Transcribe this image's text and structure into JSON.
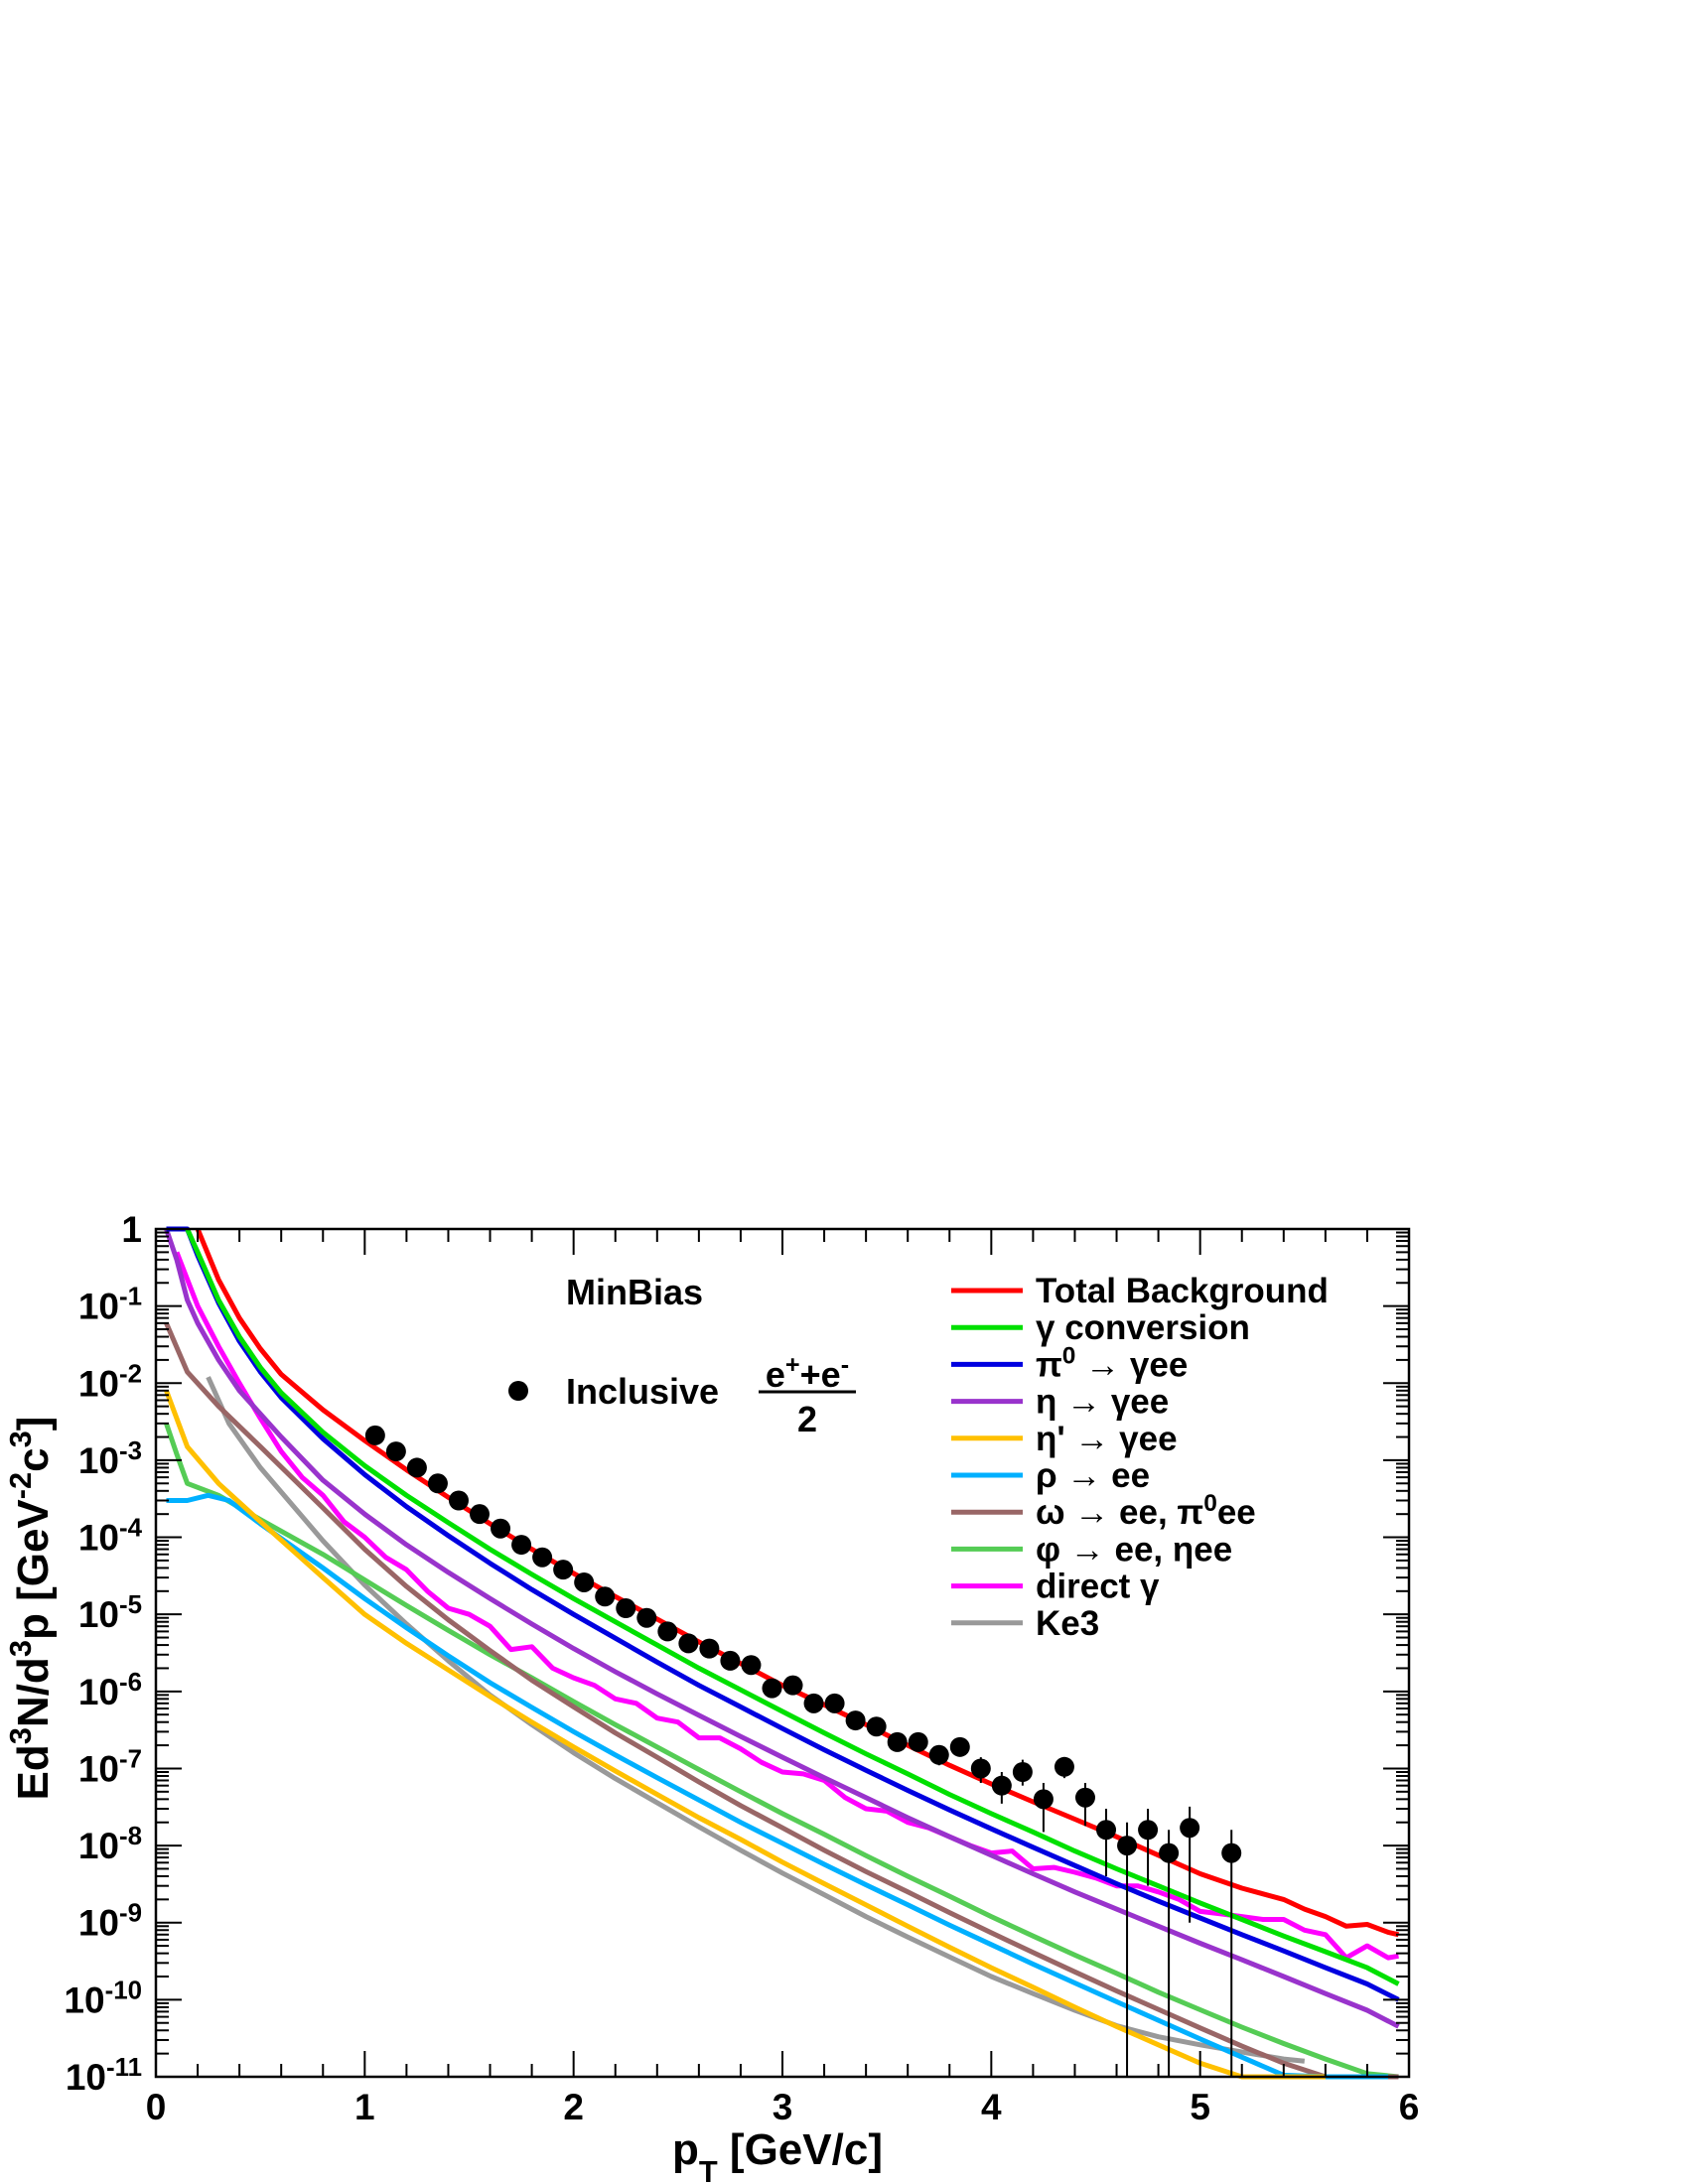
{
  "chart_data": {
    "type": "line",
    "title": "",
    "xlabel": "p_T [GeV/c]",
    "ylabel": "Ed^3N/d^3p [GeV^-2c^3]",
    "xlim": [
      0,
      6
    ],
    "ylim": [
      1e-11,
      1
    ],
    "yscale": "log",
    "x_ticks": [
      "0",
      "1",
      "2",
      "3",
      "4",
      "5",
      "6"
    ],
    "y_ticks": [
      {
        "base": "10",
        "exp": "-11",
        "value": 1e-11
      },
      {
        "base": "10",
        "exp": "-10",
        "value": 1e-10
      },
      {
        "base": "10",
        "exp": "-9",
        "value": 1e-09
      },
      {
        "base": "10",
        "exp": "-8",
        "value": 1e-08
      },
      {
        "base": "10",
        "exp": "-7",
        "value": 1e-07
      },
      {
        "base": "10",
        "exp": "-6",
        "value": 1e-06
      },
      {
        "base": "10",
        "exp": "-5",
        "value": 1e-05
      },
      {
        "base": "10",
        "exp": "-4",
        "value": 0.0001
      },
      {
        "base": "10",
        "exp": "-3",
        "value": 0.001
      },
      {
        "base": "10",
        "exp": "-2",
        "value": 0.01
      },
      {
        "base": "10",
        "exp": "-1",
        "value": 0.1
      },
      {
        "base": "1",
        "exp": "",
        "value": 1
      }
    ],
    "grid": false,
    "legend_position": "top-right",
    "annotation": {
      "text": "MinBias"
    },
    "data_series": {
      "name_prefix": "Inclusive",
      "numerator": "e+e-",
      "denominator": "2",
      "color": "#000000",
      "points": [
        {
          "x": 1.05,
          "y": 0.0021,
          "yerr_low": null,
          "yerr_high": null
        },
        {
          "x": 1.15,
          "y": 0.0013,
          "yerr_low": null,
          "yerr_high": null
        },
        {
          "x": 1.25,
          "y": 0.0008,
          "yerr_low": null,
          "yerr_high": null
        },
        {
          "x": 1.35,
          "y": 0.0005,
          "yerr_low": null,
          "yerr_high": null
        },
        {
          "x": 1.45,
          "y": 0.0003,
          "yerr_low": null,
          "yerr_high": null
        },
        {
          "x": 1.55,
          "y": 0.0002,
          "yerr_low": null,
          "yerr_high": null
        },
        {
          "x": 1.65,
          "y": 0.00013,
          "yerr_low": null,
          "yerr_high": null
        },
        {
          "x": 1.75,
          "y": 8e-05,
          "yerr_low": null,
          "yerr_high": null
        },
        {
          "x": 1.85,
          "y": 5.5e-05,
          "yerr_low": null,
          "yerr_high": null
        },
        {
          "x": 1.95,
          "y": 3.8e-05,
          "yerr_low": null,
          "yerr_high": null
        },
        {
          "x": 2.05,
          "y": 2.6e-05,
          "yerr_low": null,
          "yerr_high": null
        },
        {
          "x": 2.15,
          "y": 1.7e-05,
          "yerr_low": null,
          "yerr_high": null
        },
        {
          "x": 2.25,
          "y": 1.2e-05,
          "yerr_low": null,
          "yerr_high": null
        },
        {
          "x": 2.35,
          "y": 9e-06,
          "yerr_low": null,
          "yerr_high": null
        },
        {
          "x": 2.45,
          "y": 6e-06,
          "yerr_low": null,
          "yerr_high": null
        },
        {
          "x": 2.55,
          "y": 4.2e-06,
          "yerr_low": null,
          "yerr_high": null
        },
        {
          "x": 2.65,
          "y": 3.6e-06,
          "yerr_low": null,
          "yerr_high": null
        },
        {
          "x": 2.75,
          "y": 2.5e-06,
          "yerr_low": null,
          "yerr_high": null
        },
        {
          "x": 2.85,
          "y": 2.2e-06,
          "yerr_low": null,
          "yerr_high": null
        },
        {
          "x": 2.95,
          "y": 1.1e-06,
          "yerr_low": null,
          "yerr_high": null
        },
        {
          "x": 3.05,
          "y": 1.2e-06,
          "yerr_low": null,
          "yerr_high": null
        },
        {
          "x": 3.15,
          "y": 7e-07,
          "yerr_low": null,
          "yerr_high": null
        },
        {
          "x": 3.25,
          "y": 7e-07,
          "yerr_low": null,
          "yerr_high": null
        },
        {
          "x": 3.35,
          "y": 4.2e-07,
          "yerr_low": null,
          "yerr_high": null
        },
        {
          "x": 3.45,
          "y": 3.5e-07,
          "yerr_low": null,
          "yerr_high": null
        },
        {
          "x": 3.55,
          "y": 2.2e-07,
          "yerr_low": null,
          "yerr_high": null
        },
        {
          "x": 3.65,
          "y": 2.2e-07,
          "yerr_low": null,
          "yerr_high": null
        },
        {
          "x": 3.75,
          "y": 1.5e-07,
          "yerr_low": 1.1e-07,
          "yerr_high": 2e-07
        },
        {
          "x": 3.85,
          "y": 1.9e-07,
          "yerr_low": null,
          "yerr_high": null
        },
        {
          "x": 3.95,
          "y": 1e-07,
          "yerr_low": 6.5e-08,
          "yerr_high": 1.4e-07
        },
        {
          "x": 4.05,
          "y": 6e-08,
          "yerr_low": 3.5e-08,
          "yerr_high": 9e-08
        },
        {
          "x": 4.15,
          "y": 9e-08,
          "yerr_low": 6e-08,
          "yerr_high": 1.3e-07
        },
        {
          "x": 4.25,
          "y": 4e-08,
          "yerr_low": 1.5e-08,
          "yerr_high": 6.5e-08
        },
        {
          "x": 4.35,
          "y": 1.05e-07,
          "yerr_low": 7.5e-08,
          "yerr_high": 1.4e-07
        },
        {
          "x": 4.45,
          "y": 4.2e-08,
          "yerr_low": 1.8e-08,
          "yerr_high": 6.5e-08
        },
        {
          "x": 4.55,
          "y": 1.6e-08,
          "yerr_low": 4e-09,
          "yerr_high": 3e-08
        },
        {
          "x": 4.65,
          "y": 1e-08,
          "yerr_low": 1e-11,
          "yerr_high": 2e-08
        },
        {
          "x": 4.75,
          "y": 1.6e-08,
          "yerr_low": 3e-09,
          "yerr_high": 3e-08
        },
        {
          "x": 4.85,
          "y": 8e-09,
          "yerr_low": 1e-11,
          "yerr_high": 1.6e-08
        },
        {
          "x": 4.95,
          "y": 1.7e-08,
          "yerr_low": 1e-09,
          "yerr_high": 3.2e-08
        },
        {
          "x": 5.15,
          "y": 8e-09,
          "yerr_low": 1e-11,
          "yerr_high": 1.6e-08
        }
      ]
    },
    "series": [
      {
        "name": "Total Background",
        "color": "#ff0000",
        "x": [
          0.2,
          0.3,
          0.4,
          0.5,
          0.6,
          0.8,
          1.0,
          1.2,
          1.4,
          1.6,
          1.8,
          2.0,
          2.2,
          2.4,
          2.6,
          2.8,
          3.0,
          3.2,
          3.4,
          3.6,
          3.8,
          4.0,
          4.2,
          4.4,
          4.6,
          4.8,
          5.0,
          5.2,
          5.4,
          5.5,
          5.6,
          5.7,
          5.8,
          5.9,
          5.95
        ],
        "y": [
          1.0,
          0.22,
          0.07,
          0.028,
          0.013,
          0.0045,
          0.0018,
          0.00075,
          0.00033,
          0.00015,
          7e-05,
          3.4e-05,
          1.7e-05,
          8.7e-06,
          4.4e-06,
          2.3e-06,
          1.2e-06,
          6.7e-07,
          3.7e-07,
          2e-07,
          1.1e-07,
          6.3e-08,
          3.7e-08,
          2.2e-08,
          1.3e-08,
          7.5e-09,
          4.3e-09,
          2.8e-09,
          2e-09,
          1.5e-09,
          1.2e-09,
          9e-10,
          9.5e-10,
          7.5e-10,
          7e-10
        ]
      },
      {
        "name": "γ conversion",
        "color": "#00e000",
        "x": [
          0.15,
          0.2,
          0.3,
          0.4,
          0.5,
          0.6,
          0.8,
          1.0,
          1.2,
          1.4,
          1.6,
          1.8,
          2.0,
          2.2,
          2.4,
          2.6,
          2.8,
          3.0,
          3.2,
          3.4,
          3.6,
          3.8,
          4.0,
          4.2,
          4.4,
          4.6,
          4.8,
          5.0,
          5.2,
          5.4,
          5.6,
          5.8,
          5.95
        ],
        "y": [
          1.0,
          0.5,
          0.12,
          0.04,
          0.016,
          0.0075,
          0.0023,
          0.00085,
          0.00035,
          0.000155,
          7e-05,
          3.3e-05,
          1.6e-05,
          8e-06,
          4e-06,
          2e-06,
          1.05e-06,
          5.5e-07,
          2.9e-07,
          1.55e-07,
          8.5e-08,
          4.6e-08,
          2.6e-08,
          1.5e-08,
          8.5e-09,
          5e-09,
          3e-09,
          1.8e-09,
          1.1e-09,
          6.7e-10,
          4.2e-10,
          2.6e-10,
          1.6e-10
        ]
      },
      {
        "name": "π⁰ → γee",
        "color": "#0000e0",
        "x": [
          0.05,
          0.15,
          0.2,
          0.3,
          0.4,
          0.5,
          0.6,
          0.8,
          1.0,
          1.2,
          1.4,
          1.6,
          1.8,
          2.0,
          2.2,
          2.4,
          2.6,
          2.8,
          3.0,
          3.2,
          3.4,
          3.6,
          3.8,
          4.0,
          4.2,
          4.4,
          4.6,
          4.8,
          5.0,
          5.2,
          5.4,
          5.6,
          5.8,
          5.95
        ],
        "y": [
          1.0,
          1.0,
          0.45,
          0.11,
          0.035,
          0.014,
          0.0065,
          0.0019,
          0.00065,
          0.00025,
          0.000105,
          4.6e-05,
          2.1e-05,
          1e-05,
          4.9e-06,
          2.4e-06,
          1.2e-06,
          6.3e-07,
          3.3e-07,
          1.75e-07,
          9.5e-08,
          5.2e-08,
          2.9e-08,
          1.65e-08,
          9.5e-09,
          5.5e-09,
          3.2e-09,
          1.9e-09,
          1.15e-09,
          7e-10,
          4.3e-10,
          2.6e-10,
          1.6e-10,
          1e-10
        ]
      },
      {
        "name": "η → γee",
        "color": "#9933cc",
        "x": [
          0.05,
          0.1,
          0.15,
          0.2,
          0.3,
          0.4,
          0.6,
          0.8,
          1.0,
          1.2,
          1.4,
          1.6,
          1.8,
          2.0,
          2.2,
          2.4,
          2.6,
          2.8,
          3.0,
          3.2,
          3.4,
          3.6,
          3.8,
          4.0,
          4.2,
          4.4,
          4.6,
          4.8,
          5.0,
          5.2,
          5.4,
          5.6,
          5.8,
          5.95
        ],
        "y": [
          1.0,
          0.4,
          0.12,
          0.06,
          0.02,
          0.008,
          0.002,
          0.00055,
          0.0002,
          8e-05,
          3.5e-05,
          1.6e-05,
          7.5e-06,
          3.6e-06,
          1.8e-06,
          9.3e-07,
          4.9e-07,
          2.6e-07,
          1.4e-07,
          7.6e-08,
          4.2e-08,
          2.3e-08,
          1.3e-08,
          7.5e-09,
          4.3e-09,
          2.5e-09,
          1.5e-09,
          9e-10,
          5.4e-10,
          3.3e-10,
          2e-10,
          1.2e-10,
          7.3e-11,
          4.5e-11
        ]
      },
      {
        "name": "η' → γee",
        "color": "#ffc000",
        "x": [
          0.05,
          0.15,
          0.3,
          0.5,
          0.8,
          1.0,
          1.2,
          1.4,
          1.6,
          1.8,
          2.0,
          2.2,
          2.4,
          2.6,
          2.8,
          3.0,
          3.2,
          3.4,
          3.6,
          3.8,
          4.0,
          4.2,
          4.4,
          4.6,
          4.8,
          5.0,
          5.2,
          5.4,
          5.6
        ],
        "y": [
          0.008,
          0.0015,
          0.0005,
          0.00016,
          3e-05,
          1e-05,
          4.2e-06,
          1.9e-06,
          8.6e-07,
          4e-07,
          1.9e-07,
          9.3e-08,
          4.6e-08,
          2.3e-08,
          1.2e-08,
          6.1e-09,
          3.2e-09,
          1.7e-09,
          9e-10,
          4.8e-10,
          2.6e-10,
          1.45e-10,
          8e-11,
          4.5e-11,
          2.6e-11,
          1.5e-11,
          1e-11,
          1e-11,
          1e-11
        ]
      },
      {
        "name": "ρ → ee",
        "color": "#00b0ff",
        "x": [
          0.05,
          0.15,
          0.25,
          0.35,
          0.5,
          0.8,
          1.0,
          1.2,
          1.4,
          1.6,
          1.8,
          2.0,
          2.2,
          2.4,
          2.6,
          2.8,
          3.0,
          3.2,
          3.4,
          3.6,
          3.8,
          4.0,
          4.2,
          4.4,
          4.6,
          4.8,
          5.0,
          5.2,
          5.4,
          5.6,
          5.8,
          5.9
        ],
        "y": [
          0.0003,
          0.0003,
          0.00035,
          0.0003,
          0.00015,
          4e-05,
          1.6e-05,
          6.7e-06,
          2.9e-06,
          1.3e-06,
          6.2e-07,
          3e-07,
          1.5e-07,
          7.6e-08,
          3.9e-08,
          2e-08,
          1.07e-08,
          5.7e-09,
          3.1e-09,
          1.7e-09,
          9.3e-10,
          5.2e-10,
          2.9e-10,
          1.65e-10,
          9.4e-11,
          5.4e-11,
          3.1e-11,
          1.8e-11,
          1.05e-11,
          1e-11,
          1e-11,
          1e-11
        ]
      },
      {
        "name": "ω → ee, π⁰ee",
        "color": "#996666",
        "x": [
          0.05,
          0.15,
          0.3,
          0.5,
          0.8,
          1.0,
          1.2,
          1.4,
          1.6,
          1.8,
          2.0,
          2.2,
          2.4,
          2.6,
          2.8,
          3.0,
          3.2,
          3.4,
          3.6,
          3.8,
          4.0,
          4.2,
          4.4,
          4.6,
          4.8,
          5.0,
          5.2,
          5.4,
          5.6,
          5.8,
          5.95
        ],
        "y": [
          0.06,
          0.014,
          0.005,
          0.0015,
          0.00024,
          7e-05,
          2.3e-05,
          8.5e-06,
          3.4e-06,
          1.4e-06,
          6.3e-07,
          2.9e-07,
          1.4e-07,
          6.7e-08,
          3.3e-08,
          1.7e-08,
          8.7e-09,
          4.6e-09,
          2.5e-09,
          1.35e-09,
          7.4e-10,
          4.1e-10,
          2.3e-10,
          1.3e-10,
          7.5e-11,
          4.3e-11,
          2.5e-11,
          1.5e-11,
          1e-11,
          1e-11,
          1e-11
        ]
      },
      {
        "name": "φ → ee, ηee",
        "color": "#55cc55",
        "x": [
          0.05,
          0.1,
          0.15,
          0.3,
          0.5,
          0.8,
          1.0,
          1.2,
          1.4,
          1.6,
          1.8,
          2.0,
          2.2,
          2.4,
          2.6,
          2.8,
          3.0,
          3.2,
          3.4,
          3.6,
          3.8,
          4.0,
          4.2,
          4.4,
          4.6,
          4.8,
          5.0,
          5.2,
          5.4,
          5.6,
          5.8,
          5.95
        ],
        "y": [
          0.003,
          0.0012,
          0.0005,
          0.00035,
          0.00017,
          6e-05,
          2.8e-05,
          1.3e-05,
          6.2e-06,
          3e-06,
          1.5e-06,
          7.4e-07,
          3.7e-07,
          1.9e-07,
          9.7e-08,
          5e-08,
          2.6e-08,
          1.4e-08,
          7.4e-09,
          4e-09,
          2.2e-09,
          1.2e-09,
          6.7e-10,
          3.8e-10,
          2.2e-10,
          1.25e-10,
          7.4e-11,
          4.4e-11,
          2.7e-11,
          1.7e-11,
          1.1e-11,
          1e-11
        ]
      },
      {
        "name": "direct γ",
        "color": "#ff00ff",
        "x": [
          0.1,
          0.2,
          0.3,
          0.4,
          0.5,
          0.6,
          0.7,
          0.8,
          0.9,
          1.0,
          1.1,
          1.2,
          1.3,
          1.4,
          1.5,
          1.6,
          1.7,
          1.8,
          1.9,
          2.0,
          2.1,
          2.2,
          2.3,
          2.4,
          2.5,
          2.6,
          2.7,
          2.8,
          2.9,
          3.0,
          3.1,
          3.2,
          3.3,
          3.4,
          3.5,
          3.6,
          3.7,
          3.8,
          3.9,
          4.0,
          4.1,
          4.2,
          4.3,
          4.4,
          4.5,
          4.6,
          4.7,
          4.8,
          4.9,
          5.0,
          5.1,
          5.2,
          5.3,
          5.4,
          5.5,
          5.6,
          5.7,
          5.8,
          5.9,
          5.95
        ],
        "y": [
          0.5,
          0.1,
          0.03,
          0.01,
          0.0035,
          0.0013,
          0.0006,
          0.00035,
          0.00016,
          0.0001,
          5.5e-05,
          3.8e-05,
          2e-05,
          1.2e-05,
          1e-05,
          7e-06,
          3.5e-06,
          3.8e-06,
          2e-06,
          1.5e-06,
          1.2e-06,
          8e-07,
          7e-07,
          4.5e-07,
          4e-07,
          2.5e-07,
          2.5e-07,
          1.8e-07,
          1.2e-07,
          9e-08,
          8.5e-08,
          7e-08,
          4.2e-08,
          3e-08,
          2.8e-08,
          2e-08,
          1.7e-08,
          1.3e-08,
          1e-08,
          8e-09,
          8.5e-09,
          5e-09,
          5.2e-09,
          4.5e-09,
          3.8e-09,
          3e-09,
          3e-09,
          2.5e-09,
          2e-09,
          1.4e-09,
          1.3e-09,
          1.2e-09,
          1.1e-09,
          1.1e-09,
          8e-10,
          7e-10,
          3.5e-10,
          5e-10,
          3.5e-10,
          3.7e-10
        ]
      },
      {
        "name": "Ke3",
        "color": "#999999",
        "x": [
          0.25,
          0.35,
          0.5,
          0.8,
          1.0,
          1.2,
          1.4,
          1.6,
          1.8,
          2.0,
          2.2,
          2.4,
          2.6,
          2.8,
          3.0,
          3.2,
          3.4,
          3.6,
          3.8,
          4.0,
          4.2,
          4.4,
          4.6,
          4.8,
          5.0,
          5.2,
          5.4,
          5.5
        ],
        "y": [
          0.012,
          0.003,
          0.0008,
          9e-05,
          2.4e-05,
          7.5e-06,
          2.5e-06,
          9e-07,
          3.7e-07,
          1.6e-07,
          7.4e-08,
          3.6e-08,
          1.75e-08,
          8.7e-09,
          4.4e-09,
          2.3e-09,
          1.2e-09,
          6.5e-10,
          3.6e-10,
          2e-10,
          1.2e-10,
          7.3e-11,
          4.6e-11,
          3.3e-11,
          2.6e-11,
          2.1e-11,
          1.7e-11,
          1.6e-11
        ]
      }
    ]
  }
}
